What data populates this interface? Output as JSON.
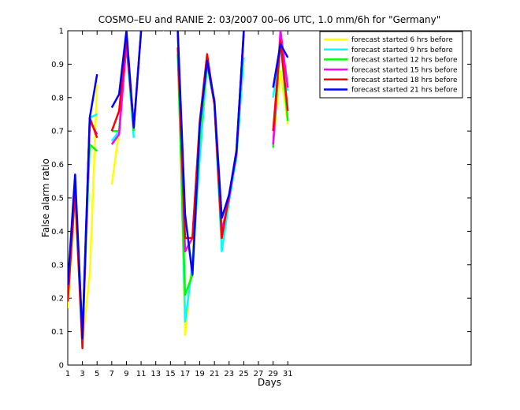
{
  "chart_data": {
    "type": "line",
    "title": "COSMO–EU and RANIE 2: 03/2007 00–06 UTC, 1.0 mm/6h for \"Germany\"",
    "xlabel": "Days",
    "ylabel": "False alarm ratio",
    "xlim": [
      1,
      56
    ],
    "ylim": [
      0,
      1
    ],
    "xticks": [
      1,
      3,
      5,
      7,
      9,
      11,
      13,
      15,
      17,
      19,
      21,
      23,
      25,
      27,
      29,
      31
    ],
    "yticks": [
      0,
      0.1,
      0.2,
      0.3,
      0.4,
      0.5,
      0.6,
      0.7,
      0.8,
      0.9,
      1
    ],
    "ytick_labels": [
      "0",
      "0.1",
      "0.2",
      "0.3",
      "0.4",
      "0.5",
      "0.6",
      "0.7",
      "0.8",
      "0.9",
      "1"
    ],
    "grid": false,
    "legend_position": "top-right",
    "x": [
      1,
      2,
      3,
      4,
      5,
      6,
      7,
      8,
      9,
      10,
      11,
      12,
      13,
      14,
      15,
      16,
      17,
      18,
      19,
      20,
      21,
      22,
      23,
      24,
      25,
      26,
      27,
      28,
      29,
      30,
      31
    ],
    "series": [
      {
        "name": "forecast started 6 hrs before",
        "color": "#ffff00",
        "values": [
          0.17,
          0.5,
          0.07,
          0.27,
          0.84,
          null,
          0.54,
          0.7,
          1.0,
          0.7,
          null,
          null,
          null,
          1.0,
          null,
          1.0,
          0.09,
          0.33,
          0.63,
          0.9,
          0.78,
          0.36,
          0.49,
          0.65,
          0.9,
          null,
          null,
          null,
          0.66,
          0.88,
          0.72
        ]
      },
      {
        "name": "forecast started 9 hrs before",
        "color": "#00ffff",
        "values": [
          0.22,
          0.55,
          0.09,
          0.74,
          0.75,
          null,
          0.67,
          0.7,
          0.96,
          0.68,
          null,
          null,
          null,
          null,
          null,
          1.0,
          0.13,
          0.3,
          0.62,
          0.9,
          0.78,
          0.34,
          0.49,
          0.62,
          0.92,
          null,
          null,
          null,
          0.8,
          0.96,
          0.82
        ]
      },
      {
        "name": "forecast started 12 hrs before",
        "color": "#00ff00",
        "values": [
          0.2,
          0.53,
          0.08,
          0.66,
          0.64,
          null,
          0.7,
          0.7,
          0.97,
          0.7,
          null,
          null,
          null,
          null,
          null,
          0.93,
          0.21,
          0.27,
          0.68,
          0.9,
          0.78,
          0.39,
          0.5,
          0.64,
          0.99,
          null,
          null,
          null,
          0.65,
          0.97,
          0.73
        ]
      },
      {
        "name": "forecast started 15 hrs before",
        "color": "#ff00ff",
        "values": [
          0.21,
          0.54,
          0.08,
          0.73,
          0.69,
          null,
          0.66,
          0.69,
          0.96,
          0.72,
          null,
          null,
          null,
          null,
          null,
          1.0,
          0.34,
          0.38,
          0.72,
          0.91,
          0.78,
          0.4,
          0.5,
          0.64,
          0.99,
          null,
          null,
          null,
          0.66,
          1.0,
          0.83
        ]
      },
      {
        "name": "forecast started 18 hrs before",
        "color": "#ff0000",
        "values": [
          0.19,
          0.52,
          0.05,
          0.74,
          0.68,
          null,
          0.7,
          0.76,
          0.98,
          0.71,
          1.0,
          null,
          null,
          null,
          null,
          0.95,
          0.38,
          0.38,
          0.73,
          0.93,
          0.78,
          0.38,
          0.51,
          0.63,
          1.0,
          null,
          null,
          null,
          0.7,
          0.97,
          0.76
        ]
      },
      {
        "name": "forecast started 21 hrs before",
        "color": "#0000ff",
        "values": [
          0.24,
          0.57,
          0.08,
          0.74,
          0.87,
          null,
          0.77,
          0.81,
          1.0,
          0.71,
          1.0,
          null,
          null,
          null,
          null,
          1.0,
          0.45,
          0.27,
          0.72,
          0.91,
          0.79,
          0.44,
          0.51,
          0.64,
          1.0,
          null,
          null,
          null,
          0.83,
          0.96,
          0.92
        ]
      }
    ]
  }
}
